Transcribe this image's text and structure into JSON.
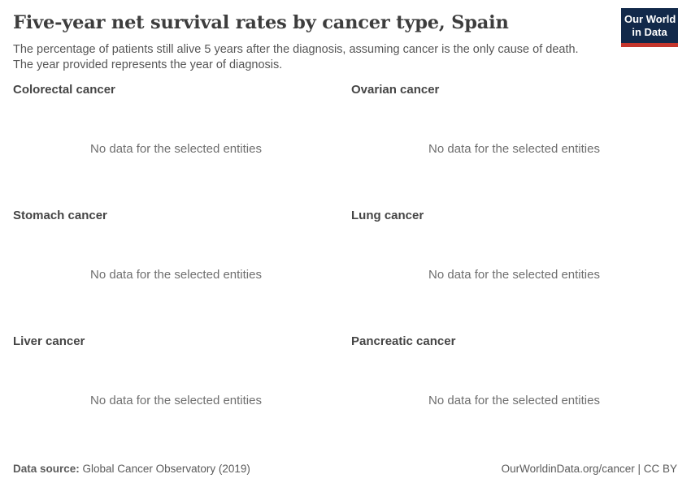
{
  "header": {
    "title": "Five-year net survival rates by cancer type, Spain",
    "subtitle_lines": [
      "The percentage of patients still alive 5 years after the diagnosis, assuming cancer is the only cause of death.",
      "The year provided represents the year of diagnosis."
    ],
    "logo": {
      "line1": "Our World",
      "line2": "in Data",
      "bg_color": "#12294a",
      "bar_color": "#c4362d",
      "text_color": "#ffffff"
    }
  },
  "panels": [
    {
      "title": "Colorectal cancer",
      "message": "No data for the selected entities"
    },
    {
      "title": "Ovarian cancer",
      "message": "No data for the selected entities"
    },
    {
      "title": "Stomach cancer",
      "message": "No data for the selected entities"
    },
    {
      "title": "Lung cancer",
      "message": "No data for the selected entities"
    },
    {
      "title": "Liver cancer",
      "message": "No data for the selected entities"
    },
    {
      "title": "Pancreatic cancer",
      "message": "No data for the selected entities"
    }
  ],
  "footer": {
    "source_label": "Data source:",
    "source_value": " Global Cancer Observatory (2019)",
    "credit": "OurWorldinData.org/cancer | CC BY"
  },
  "colors": {
    "title_text": "#3d3d3d",
    "subtitle_text": "#565656",
    "facet_title_text": "#454545",
    "no_data_text": "#6f6f6f",
    "footer_text": "#5b5b5b",
    "background": "#ffffff"
  },
  "chart_data": {
    "type": "line",
    "title": "Five-year net survival rates by cancer type, Spain",
    "subtitle": "The percentage of patients still alive 5 years after the diagnosis, assuming cancer is the only cause of death. The year provided represents the year of diagnosis.",
    "facets": [
      {
        "title": "Colorectal cancer",
        "series": [],
        "note": "No data for the selected entities"
      },
      {
        "title": "Ovarian cancer",
        "series": [],
        "note": "No data for the selected entities"
      },
      {
        "title": "Stomach cancer",
        "series": [],
        "note": "No data for the selected entities"
      },
      {
        "title": "Lung cancer",
        "series": [],
        "note": "No data for the selected entities"
      },
      {
        "title": "Liver cancer",
        "series": [],
        "note": "No data for the selected entities"
      },
      {
        "title": "Pancreatic cancer",
        "series": [],
        "note": "No data for the selected entities"
      }
    ],
    "legend_position": "none",
    "grid": false
  }
}
